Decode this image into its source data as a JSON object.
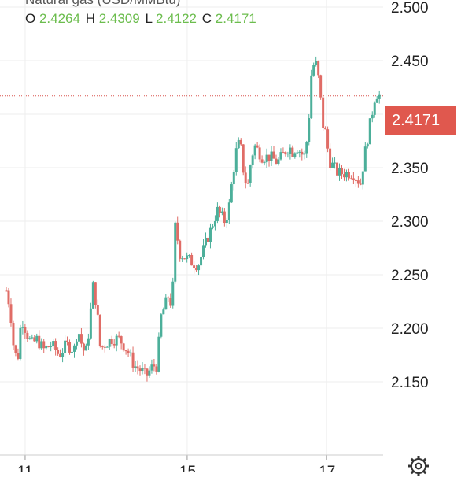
{
  "header": {
    "title": "Natural gas (USD/MMBtu)",
    "ohlc": [
      {
        "key": "O",
        "value": "2.4264"
      },
      {
        "key": "H",
        "value": "2.4309"
      },
      {
        "key": "L",
        "value": "2.4122"
      },
      {
        "key": "C",
        "value": "2.4171"
      }
    ]
  },
  "price_badge": {
    "label": "2.4171"
  },
  "colors": {
    "up": "#4caf9a",
    "down": "#e06c66",
    "value_green": "#6cbd4e",
    "badge": "#e0584e",
    "grid": "#eeeeee",
    "price_line": "#d9534f"
  },
  "chart_data": {
    "type": "candlestick",
    "title": "Natural gas (USD/MMBtu)",
    "x_tick_labels": [
      {
        "label": "11",
        "pos": 0.05
      },
      {
        "label": "15",
        "pos": 0.48
      },
      {
        "label": "17",
        "pos": 0.85
      }
    ],
    "y_ticks": [
      2.15,
      2.2,
      2.25,
      2.3,
      2.35,
      2.4,
      2.45,
      2.5
    ],
    "y_tick_labels": [
      "2.150",
      "2.200",
      "2.250",
      "2.300",
      "2.350",
      "",
      "2.450",
      "2.500"
    ],
    "ylim": [
      2.1,
      2.525
    ],
    "last_price": 2.4171,
    "grid": true,
    "close_path": [
      [
        0.0,
        2.235
      ],
      [
        0.01,
        2.22
      ],
      [
        0.02,
        2.18
      ],
      [
        0.03,
        2.17
      ],
      [
        0.04,
        2.21
      ],
      [
        0.05,
        2.2
      ],
      [
        0.06,
        2.19
      ],
      [
        0.07,
        2.185
      ],
      [
        0.08,
        2.19
      ],
      [
        0.1,
        2.18
      ],
      [
        0.12,
        2.185
      ],
      [
        0.14,
        2.175
      ],
      [
        0.16,
        2.185
      ],
      [
        0.18,
        2.18
      ],
      [
        0.19,
        2.2
      ],
      [
        0.2,
        2.185
      ],
      [
        0.21,
        2.175
      ],
      [
        0.22,
        2.2
      ],
      [
        0.23,
        2.24
      ],
      [
        0.24,
        2.22
      ],
      [
        0.25,
        2.18
      ],
      [
        0.26,
        2.185
      ],
      [
        0.28,
        2.19
      ],
      [
        0.3,
        2.19
      ],
      [
        0.32,
        2.18
      ],
      [
        0.34,
        2.165
      ],
      [
        0.36,
        2.16
      ],
      [
        0.37,
        2.155
      ],
      [
        0.38,
        2.16
      ],
      [
        0.39,
        2.165
      ],
      [
        0.4,
        2.165
      ],
      [
        0.41,
        2.21
      ],
      [
        0.42,
        2.22
      ],
      [
        0.43,
        2.23
      ],
      [
        0.44,
        2.22
      ],
      [
        0.45,
        2.31
      ],
      [
        0.455,
        2.28
      ],
      [
        0.46,
        2.27
      ],
      [
        0.48,
        2.265
      ],
      [
        0.5,
        2.26
      ],
      [
        0.51,
        2.26
      ],
      [
        0.52,
        2.27
      ],
      [
        0.53,
        2.28
      ],
      [
        0.54,
        2.29
      ],
      [
        0.55,
        2.3
      ],
      [
        0.56,
        2.31
      ],
      [
        0.57,
        2.305
      ],
      [
        0.58,
        2.3
      ],
      [
        0.59,
        2.31
      ],
      [
        0.6,
        2.34
      ],
      [
        0.61,
        2.365
      ],
      [
        0.62,
        2.375
      ],
      [
        0.63,
        2.345
      ],
      [
        0.64,
        2.33
      ],
      [
        0.65,
        2.36
      ],
      [
        0.66,
        2.37
      ],
      [
        0.67,
        2.365
      ],
      [
        0.68,
        2.36
      ],
      [
        0.7,
        2.36
      ],
      [
        0.72,
        2.355
      ],
      [
        0.74,
        2.365
      ],
      [
        0.75,
        2.37
      ],
      [
        0.76,
        2.365
      ],
      [
        0.77,
        2.37
      ],
      [
        0.78,
        2.365
      ],
      [
        0.79,
        2.36
      ],
      [
        0.8,
        2.38
      ],
      [
        0.81,
        2.44
      ],
      [
        0.82,
        2.45
      ],
      [
        0.83,
        2.43
      ],
      [
        0.835,
        2.41
      ],
      [
        0.84,
        2.39
      ],
      [
        0.85,
        2.38
      ],
      [
        0.855,
        2.36
      ],
      [
        0.86,
        2.355
      ],
      [
        0.87,
        2.35
      ],
      [
        0.88,
        2.345
      ],
      [
        0.89,
        2.345
      ],
      [
        0.9,
        2.345
      ],
      [
        0.92,
        2.345
      ],
      [
        0.93,
        2.34
      ],
      [
        0.94,
        2.335
      ],
      [
        0.95,
        2.36
      ],
      [
        0.96,
        2.38
      ],
      [
        0.97,
        2.4
      ],
      [
        0.98,
        2.42
      ],
      [
        0.99,
        2.4171
      ]
    ]
  }
}
